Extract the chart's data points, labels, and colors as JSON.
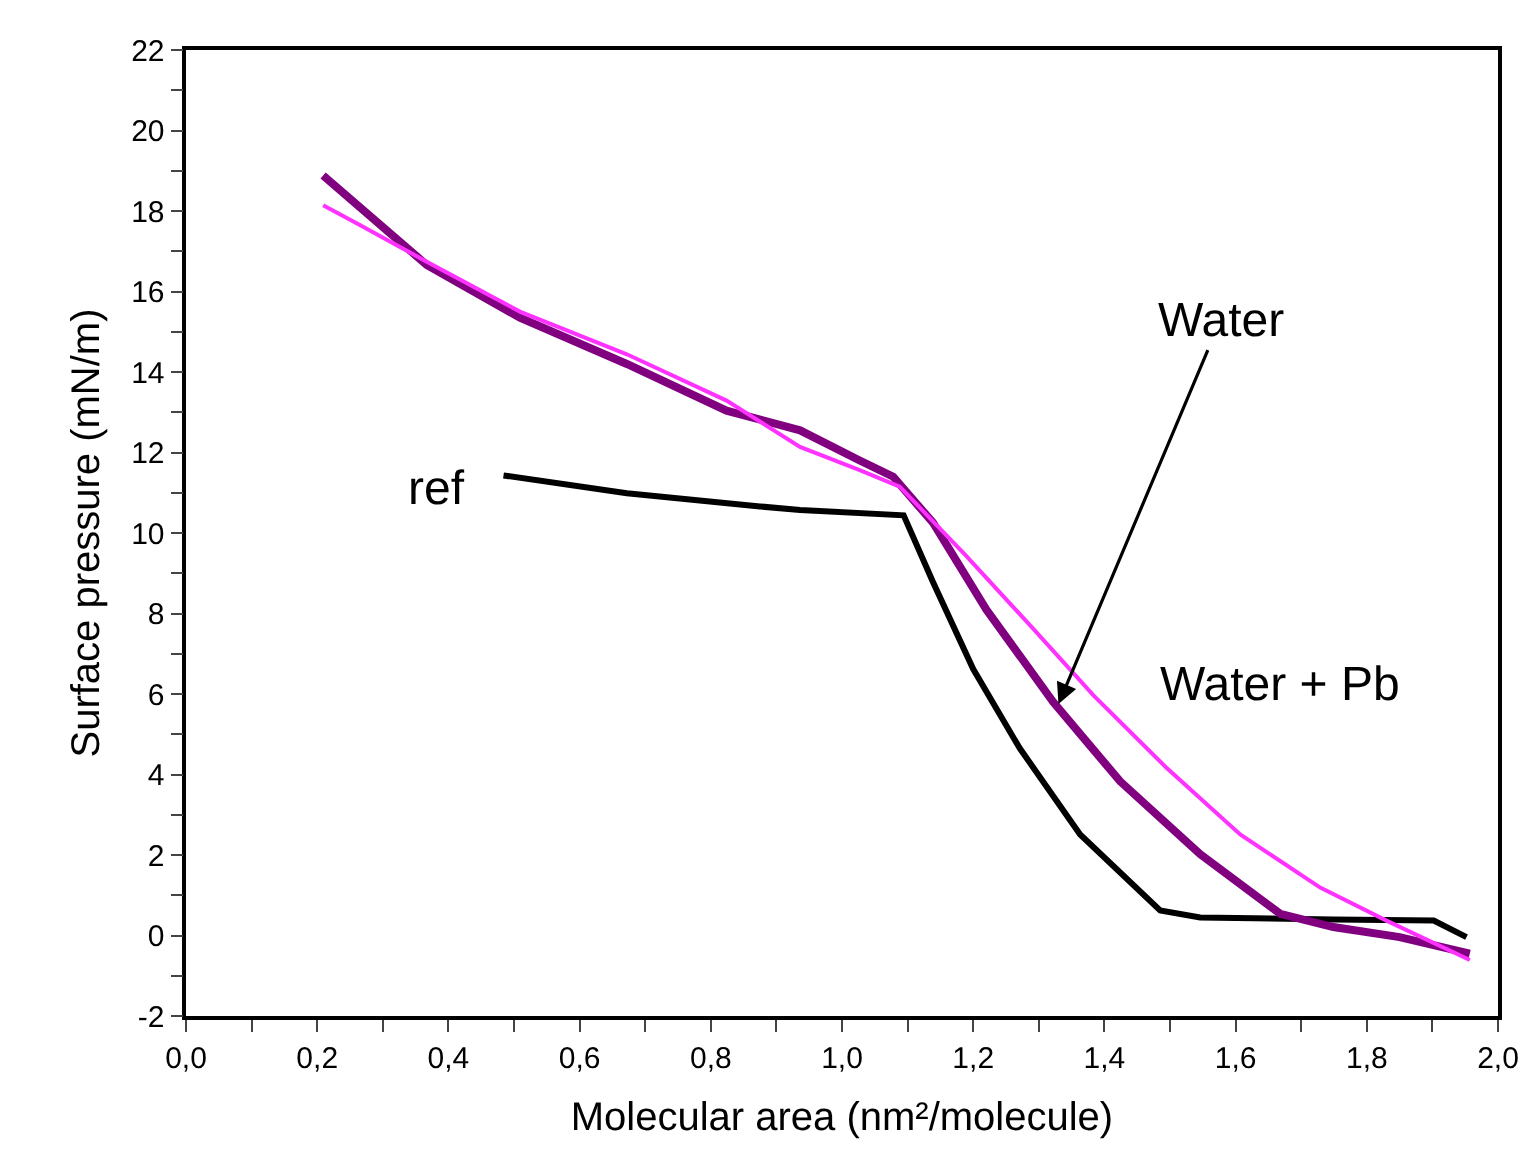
{
  "chart_data": {
    "type": "line",
    "xlabel": "Molecular area (nm²/molecule)",
    "ylabel": "Surface pressure (mN/m)",
    "xlim": [
      0,
      2
    ],
    "ylim": [
      -2,
      22
    ],
    "xticks": [
      {
        "value": 0,
        "label": "0,0"
      },
      {
        "value": 0.1,
        "label": null
      },
      {
        "value": 0.2,
        "label": "0,2"
      },
      {
        "value": 0.3,
        "label": null
      },
      {
        "value": 0.4,
        "label": "0,4"
      },
      {
        "value": 0.5,
        "label": null
      },
      {
        "value": 0.6,
        "label": "0,6"
      },
      {
        "value": 0.7,
        "label": null
      },
      {
        "value": 0.8,
        "label": "0,8"
      },
      {
        "value": 0.9,
        "label": null
      },
      {
        "value": 1,
        "label": "1,0"
      },
      {
        "value": 1.1,
        "label": null
      },
      {
        "value": 1.2,
        "label": "1,2"
      },
      {
        "value": 1.3,
        "label": null
      },
      {
        "value": 1.4,
        "label": "1,4"
      },
      {
        "value": 1.5,
        "label": null
      },
      {
        "value": 1.6,
        "label": "1,6"
      },
      {
        "value": 1.7,
        "label": null
      },
      {
        "value": 1.8,
        "label": "1,8"
      },
      {
        "value": 1.9,
        "label": null
      },
      {
        "value": 2,
        "label": "2,0"
      }
    ],
    "yticks": [
      -2,
      {
        "value": -1,
        "label": null
      },
      0,
      {
        "value": 1,
        "label": null
      },
      2,
      {
        "value": 3,
        "label": null
      },
      4,
      {
        "value": 5,
        "label": null
      },
      6,
      {
        "value": 7,
        "label": null
      },
      8,
      {
        "value": 9,
        "label": null
      },
      10,
      {
        "value": 11,
        "label": null
      },
      12,
      {
        "value": 13,
        "label": null
      },
      14,
      {
        "value": 15,
        "label": null
      },
      16,
      {
        "value": 17,
        "label": null
      },
      18,
      {
        "value": 19,
        "label": null
      },
      20,
      {
        "value": 21,
        "label": null
      },
      22
    ],
    "grid": false,
    "marker": "none",
    "line_style": "solid",
    "series": [
      {
        "color": "#000000",
        "x": [
          0.484,
          0.672,
          0.875,
          0.936,
          1.094,
          1.139,
          1.2,
          1.271,
          1.363,
          1.485,
          1.546,
          1.749,
          1.902,
          1.952
        ],
        "values": [
          11.43,
          10.99,
          10.66,
          10.57,
          10.44,
          8.77,
          6.62,
          4.65,
          2.51,
          0.62,
          0.45,
          0.4,
          0.37,
          -0.04
        ]
      },
      {
        "color": "#800080",
        "x": [
          0.209,
          0.367,
          0.509,
          0.672,
          0.824,
          0.936,
          1.027,
          1.078,
          1.139,
          1.22,
          1.322,
          1.424,
          1.546,
          1.668,
          1.749,
          1.85,
          1.957
        ],
        "values": [
          18.88,
          16.66,
          15.35,
          14.2,
          13.04,
          12.55,
          11.8,
          11.4,
          10.25,
          8.1,
          5.8,
          3.83,
          2.02,
          0.54,
          0.21,
          -0.04,
          -0.45
        ]
      },
      {
        "color": "#ff33ff",
        "x": [
          0.209,
          0.265,
          0.367,
          0.509,
          0.672,
          0.824,
          0.936,
          1.027,
          1.088,
          1.19,
          1.292,
          1.383,
          1.495,
          1.607,
          1.729,
          1.83,
          1.957
        ],
        "values": [
          18.14,
          17.65,
          16.74,
          15.5,
          14.44,
          13.29,
          12.14,
          11.56,
          11.15,
          9.42,
          7.61,
          5.97,
          4.16,
          2.51,
          1.19,
          0.37,
          -0.61
        ]
      }
    ],
    "annotations": [
      "ref",
      {
        "text": "Water",
        "x": 1.33,
        "y": 5.75
      },
      "Water + Pb"
    ]
  }
}
